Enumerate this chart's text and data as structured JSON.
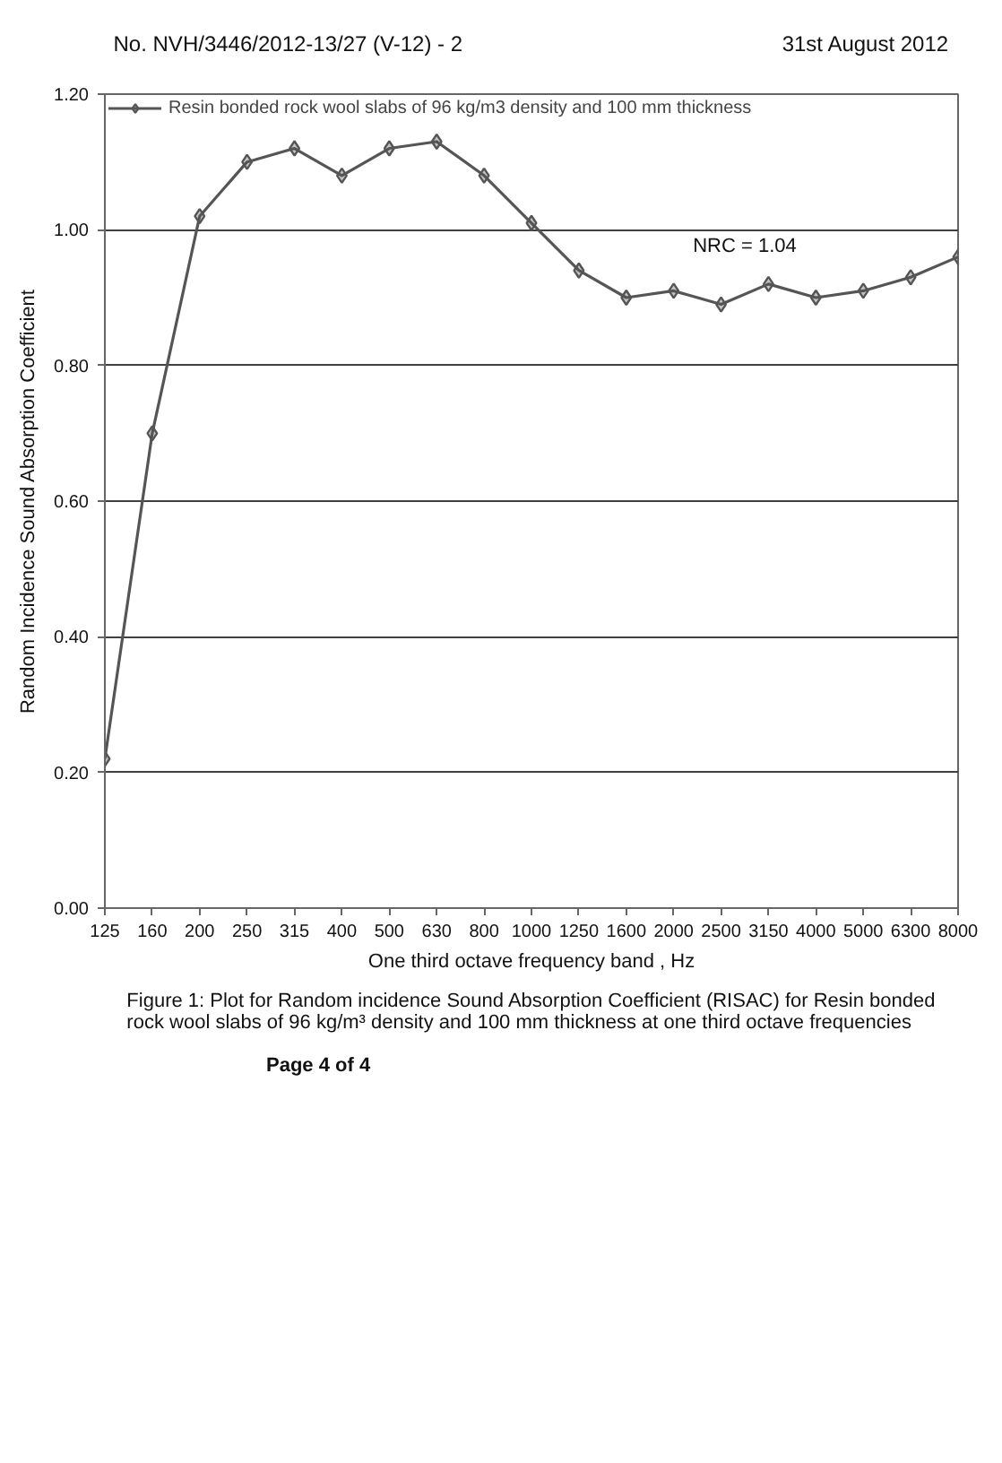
{
  "chart_data": {
    "type": "line",
    "title": "Figure 1: Plot for Random incidence Sound Absorption Coefficient (RISAC) for Resin bonded rock wool slabs of 96 kg/m³ density and 100 mm thickness at one third octave frequencies",
    "xlabel": "One third octave frequency band , Hz",
    "ylabel": "Random Incidence Sound Absorption Coefficient",
    "categories": [
      "125",
      "160",
      "200",
      "250",
      "315",
      "400",
      "500",
      "630",
      "800",
      "1000",
      "1250",
      "1600",
      "2000",
      "2500",
      "3150",
      "4000",
      "5000",
      "6300",
      "8000"
    ],
    "series": [
      {
        "name": "Resin bonded rock wool slabs of 96 kg/m3 density and 100 mm thickness",
        "color": "#555555",
        "values": [
          0.22,
          0.7,
          1.02,
          1.1,
          1.12,
          1.08,
          1.12,
          1.13,
          1.08,
          1.01,
          0.94,
          0.9,
          0.91,
          0.89,
          0.92,
          0.9,
          0.91,
          0.93,
          0.96
        ]
      }
    ],
    "ylim": [
      0,
      1.2
    ],
    "yticks": [
      {
        "value": 0,
        "label": "0.00"
      },
      {
        "value": 0.2,
        "label": "0.20"
      },
      {
        "value": 0.4,
        "label": "0.40"
      },
      {
        "value": 0.6,
        "label": "0.60"
      },
      {
        "value": 0.8,
        "label": "0.80"
      },
      {
        "value": 1.0,
        "label": "1.00"
      },
      {
        "value": 1.2,
        "label": "1.20"
      }
    ],
    "grid": "y",
    "legend": "top left",
    "marker": "diamond",
    "line_style": "solid",
    "annotations": [
      "No. NVH/3446/2012-13/27 (V-12) - 2",
      "31st August 2012",
      "NRC = 1.04",
      "Page 4 of 4"
    ]
  }
}
